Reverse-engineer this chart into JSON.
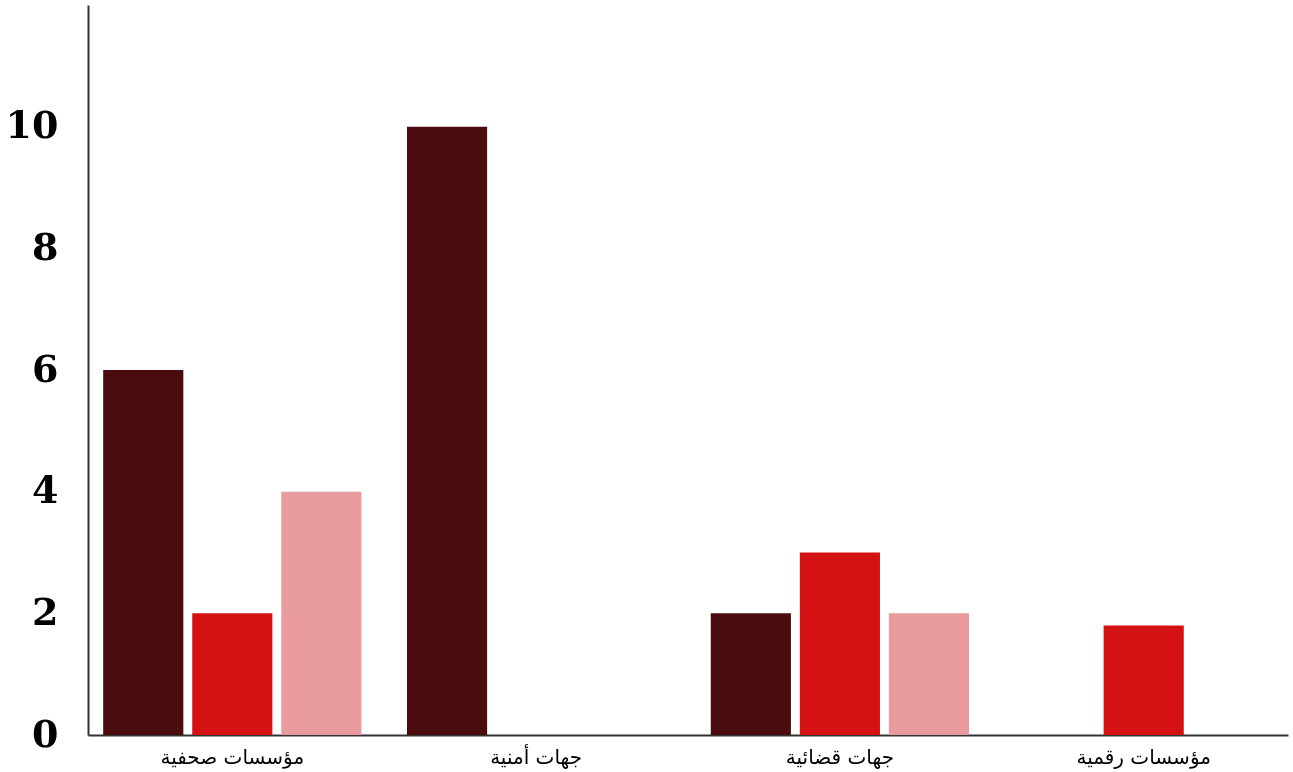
{
  "chart_data": {
    "type": "bar",
    "categories": [
      "مؤسسات صحفية",
      "جهات أمنية",
      "جهات قضائية",
      "مؤسسات رقمية"
    ],
    "series": [
      {
        "color": "#4a0c0e",
        "values": [
          6,
          10,
          2,
          null
        ]
      },
      {
        "color": "#d41214",
        "values": [
          2,
          null,
          3,
          1.8
        ]
      },
      {
        "color": "#e89a9e",
        "values": [
          4,
          null,
          2,
          null
        ]
      }
    ],
    "ylim": [
      0,
      12
    ],
    "yticks": [
      0,
      2,
      4,
      6,
      8,
      10
    ],
    "grid": false,
    "legend": false
  }
}
